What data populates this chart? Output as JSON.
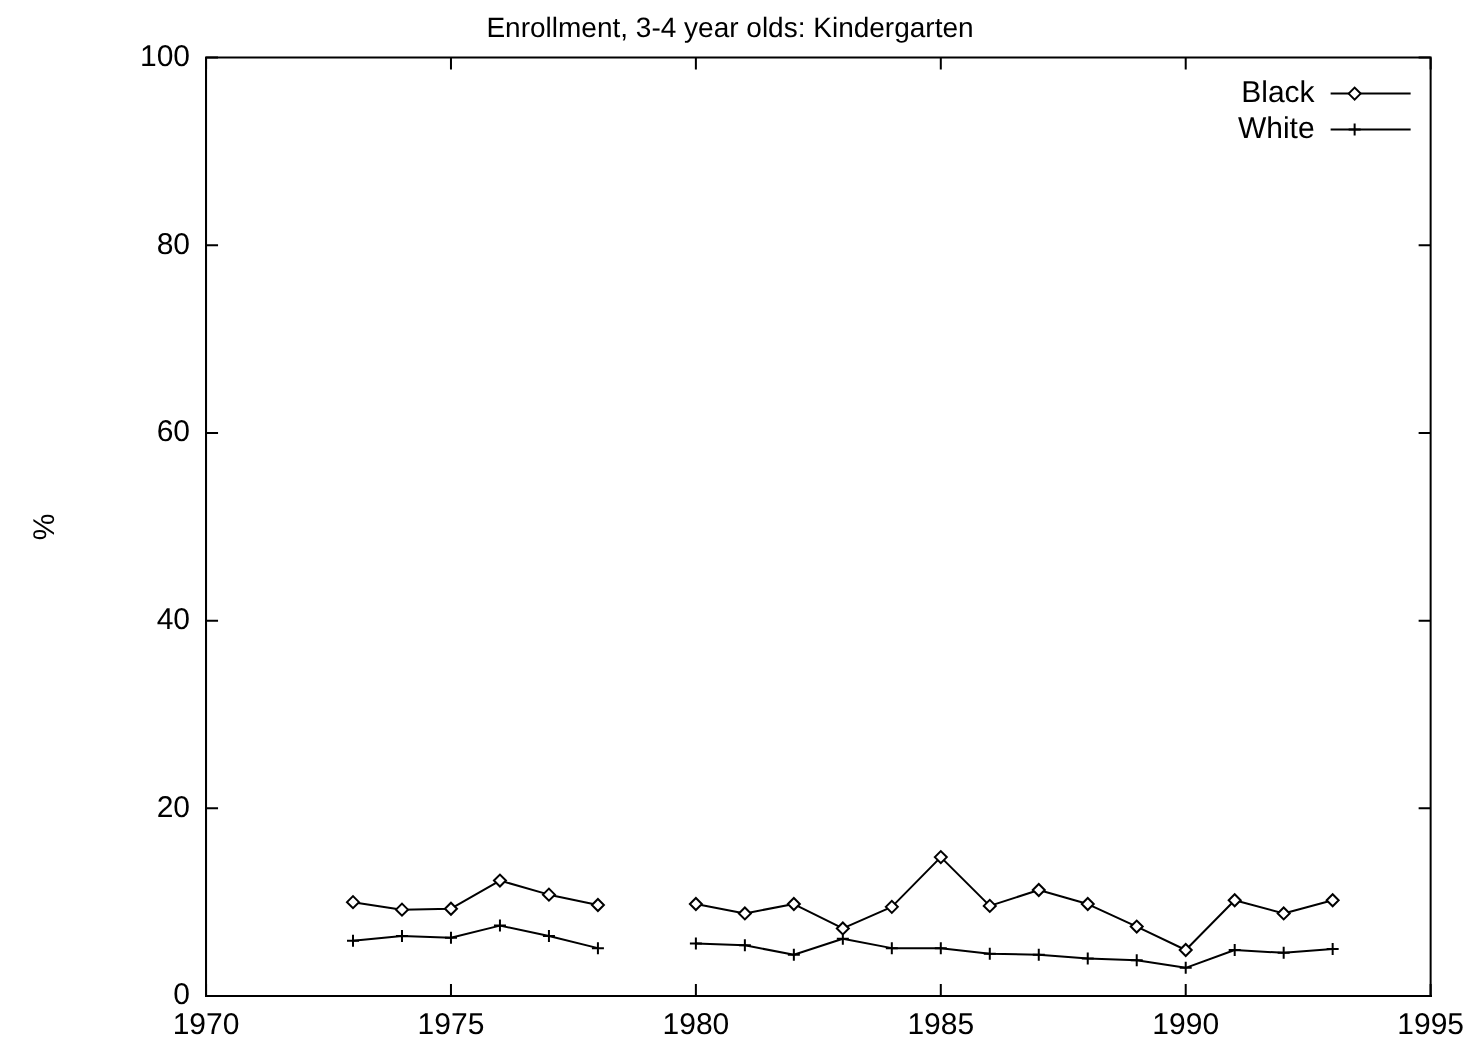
{
  "chart_data": {
    "type": "line",
    "title": "Enrollment, 3-4 year olds: Kindergarten",
    "ylabel": "%",
    "x": [
      1973,
      1974,
      1975,
      1976,
      1977,
      1978,
      1979,
      1980,
      1981,
      1982,
      1983,
      1984,
      1985,
      1986,
      1987,
      1988,
      1989,
      1990,
      1991,
      1992,
      1993
    ],
    "series": [
      {
        "name": "Black",
        "color": "#000000",
        "marker": "diamond",
        "values": [
          10,
          9.2,
          9.3,
          12.3,
          10.8,
          9.7,
          null,
          9.8,
          8.8,
          9.8,
          7.2,
          9.5,
          14.8,
          9.6,
          11.3,
          9.8,
          7.4,
          4.9,
          10.2,
          8.8,
          10.2
        ]
      },
      {
        "name": "White",
        "color": "#000000",
        "marker": "cross",
        "values": [
          5.9,
          6.4,
          6.2,
          7.5,
          6.4,
          5.1,
          null,
          5.6,
          5.4,
          4.4,
          6.1,
          5.1,
          5.1,
          4.5,
          4.4,
          4.0,
          3.8,
          3.0,
          4.9,
          4.6,
          5.0
        ]
      }
    ],
    "xlim": [
      1970,
      1995
    ],
    "xticks": [
      1970,
      1975,
      1980,
      1985,
      1990,
      1995
    ],
    "ylim": [
      0,
      100
    ],
    "yticks": [
      0,
      20,
      40,
      60,
      80,
      100
    ],
    "grid": false,
    "legend": "top right"
  }
}
